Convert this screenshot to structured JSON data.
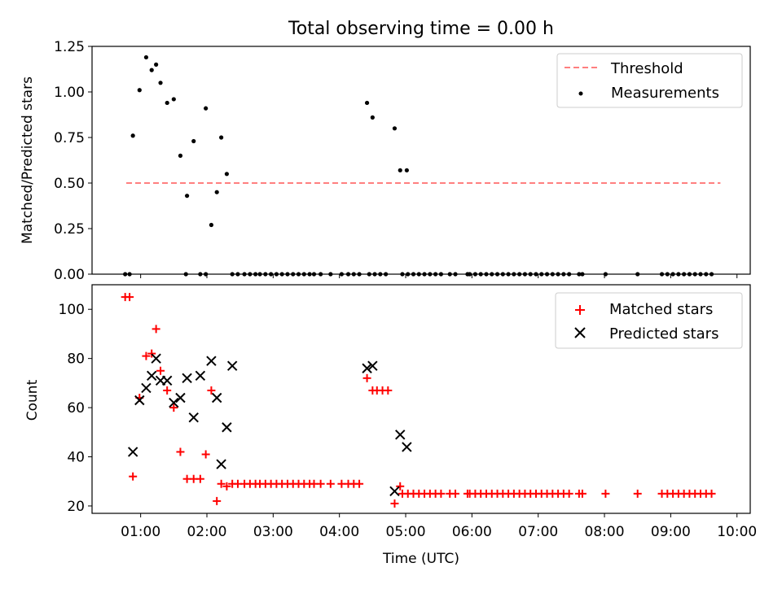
{
  "title": "Total observing time = 0.00 h",
  "colors": {
    "threshold": "#ff7f7f",
    "measurements": "#000000",
    "matched": "#ff0000",
    "predicted": "#000000"
  },
  "chart_data": [
    {
      "type": "scatter",
      "ylabel": "Matched/Predicted stars",
      "xlim": [
        "00:16",
        "10:12"
      ],
      "ylim": [
        0,
        1.25
      ],
      "grid": false,
      "legend_placement": "top-right",
      "x_ticks": [
        "01:00",
        "02:00",
        "03:00",
        "04:00",
        "05:00",
        "06:00",
        "07:00",
        "08:00",
        "09:00",
        "10:00"
      ],
      "y_ticks": [
        "0.00",
        "0.25",
        "0.50",
        "0.75",
        "1.00",
        "1.25"
      ],
      "legend": [
        "Threshold",
        "Measurements"
      ],
      "threshold": {
        "name": "Threshold",
        "y": 0.5,
        "x": [
          "00:47",
          "09:45"
        ]
      },
      "series": [
        {
          "name": "Measurements",
          "marker": "dot",
          "x": [
            "00:53",
            "00:59",
            "01:05",
            "01:10",
            "01:14",
            "01:18",
            "01:24",
            "01:30",
            "01:36",
            "01:42",
            "01:48",
            "01:59",
            "02:04",
            "02:09",
            "02:13",
            "02:18",
            "02:23",
            "00:46",
            "00:50",
            "01:41",
            "01:54",
            "01:59",
            "02:28",
            "02:34",
            "02:39",
            "02:44",
            "02:48",
            "02:53",
            "02:58",
            "03:03",
            "03:08",
            "03:13",
            "03:18",
            "03:23",
            "03:28",
            "03:33",
            "03:37",
            "03:43",
            "03:52",
            "04:02",
            "04:08",
            "04:13",
            "04:18",
            "04:27",
            "04:32",
            "04:37",
            "04:42",
            "04:57",
            "05:02",
            "05:07",
            "05:12",
            "05:17",
            "05:22",
            "05:27",
            "05:32",
            "05:40",
            "05:45",
            "05:56",
            "05:58",
            "06:03",
            "06:08",
            "06:13",
            "06:18",
            "06:23",
            "06:28",
            "06:33",
            "06:38",
            "06:43",
            "06:48",
            "06:53",
            "06:58",
            "07:03",
            "07:08",
            "07:13",
            "07:18",
            "07:23",
            "07:28",
            "07:37",
            "07:40",
            "08:01",
            "08:30",
            "08:52",
            "08:57",
            "09:02",
            "09:07",
            "09:12",
            "09:17",
            "09:22",
            "09:27",
            "09:32",
            "09:37",
            "04:25",
            "04:30",
            "04:50",
            "04:55",
            "05:01"
          ],
          "y": [
            0.76,
            1.01,
            1.19,
            1.12,
            1.15,
            1.05,
            0.94,
            0.96,
            0.65,
            0.43,
            0.73,
            0.91,
            0.27,
            0.45,
            0.75,
            0.55,
            0.0,
            0.0,
            0.0,
            0.0,
            0.0,
            0.0,
            0.0,
            0.0,
            0.0,
            0.0,
            0.0,
            0.0,
            0.0,
            0.0,
            0.0,
            0.0,
            0.0,
            0.0,
            0.0,
            0.0,
            0.0,
            0.0,
            0.0,
            0.0,
            0.0,
            0.0,
            0.0,
            0.0,
            0.0,
            0.0,
            0.0,
            0.0,
            0.0,
            0.0,
            0.0,
            0.0,
            0.0,
            0.0,
            0.0,
            0.0,
            0.0,
            0.0,
            0.0,
            0.0,
            0.0,
            0.0,
            0.0,
            0.0,
            0.0,
            0.0,
            0.0,
            0.0,
            0.0,
            0.0,
            0.0,
            0.0,
            0.0,
            0.0,
            0.0,
            0.0,
            0.0,
            0.0,
            0.0,
            0.0,
            0.0,
            0.0,
            0.0,
            0.0,
            0.0,
            0.0,
            0.0,
            0.0,
            0.0,
            0.0,
            0.0,
            0.94,
            0.86,
            0.8,
            0.57,
            0.57
          ]
        }
      ]
    },
    {
      "type": "scatter",
      "xlabel": "Time (UTC)",
      "ylabel": "Count",
      "xlim": [
        "00:16",
        "10:12"
      ],
      "ylim": [
        17,
        110
      ],
      "grid": false,
      "legend_placement": "top-right",
      "x_ticks": [
        "01:00",
        "02:00",
        "03:00",
        "04:00",
        "05:00",
        "06:00",
        "07:00",
        "08:00",
        "09:00",
        "10:00"
      ],
      "y_ticks": [
        "20",
        "40",
        "60",
        "80",
        "100"
      ],
      "legend": [
        "Matched stars",
        "Predicted stars"
      ],
      "series": [
        {
          "name": "Matched stars",
          "marker": "plus",
          "x": [
            "00:46",
            "00:50",
            "00:53",
            "00:59",
            "01:05",
            "01:10",
            "01:14",
            "01:18",
            "01:24",
            "01:30",
            "01:36",
            "01:42",
            "01:48",
            "01:54",
            "01:59",
            "02:04",
            "02:09",
            "02:13",
            "02:18",
            "02:23",
            "02:28",
            "02:34",
            "02:39",
            "02:44",
            "02:48",
            "02:53",
            "02:58",
            "03:03",
            "03:08",
            "03:13",
            "03:18",
            "03:23",
            "03:28",
            "03:33",
            "03:37",
            "03:43",
            "03:52",
            "04:02",
            "04:08",
            "04:13",
            "04:18",
            "04:25",
            "04:30",
            "04:34",
            "04:39",
            "04:44",
            "04:50",
            "04:55",
            "04:57",
            "05:02",
            "05:07",
            "05:12",
            "05:17",
            "05:22",
            "05:27",
            "05:32",
            "05:40",
            "05:45",
            "05:56",
            "05:58",
            "06:03",
            "06:08",
            "06:13",
            "06:18",
            "06:23",
            "06:28",
            "06:33",
            "06:38",
            "06:43",
            "06:48",
            "06:53",
            "06:58",
            "07:03",
            "07:08",
            "07:13",
            "07:18",
            "07:23",
            "07:28",
            "07:37",
            "07:40",
            "08:01",
            "08:30",
            "08:52",
            "08:57",
            "09:02",
            "09:07",
            "09:12",
            "09:17",
            "09:22",
            "09:27",
            "09:32",
            "09:37"
          ],
          "y": [
            105,
            105,
            32,
            64,
            81,
            82,
            92,
            75,
            67,
            60,
            42,
            31,
            31,
            31,
            41,
            67,
            22,
            29,
            28,
            29,
            29,
            29,
            29,
            29,
            29,
            29,
            29,
            29,
            29,
            29,
            29,
            29,
            29,
            29,
            29,
            29,
            29,
            29,
            29,
            29,
            29,
            72,
            67,
            67,
            67,
            67,
            21,
            28,
            25,
            25,
            25,
            25,
            25,
            25,
            25,
            25,
            25,
            25,
            25,
            25,
            25,
            25,
            25,
            25,
            25,
            25,
            25,
            25,
            25,
            25,
            25,
            25,
            25,
            25,
            25,
            25,
            25,
            25,
            25,
            25,
            25,
            25,
            25,
            25,
            25,
            25,
            25,
            25,
            25,
            25,
            25,
            25
          ]
        },
        {
          "name": "Predicted stars",
          "marker": "x",
          "x": [
            "00:53",
            "00:59",
            "01:05",
            "01:10",
            "01:14",
            "01:18",
            "01:24",
            "01:30",
            "01:36",
            "01:42",
            "01:48",
            "01:54",
            "02:04",
            "02:09",
            "02:13",
            "02:18",
            "02:23",
            "04:25",
            "04:30",
            "04:50",
            "04:55",
            "05:01"
          ],
          "y": [
            42,
            63,
            68,
            73,
            80,
            71,
            71,
            62,
            64,
            72,
            56,
            73,
            79,
            64,
            37,
            52,
            77,
            76,
            77,
            26,
            49,
            44
          ]
        }
      ]
    }
  ]
}
